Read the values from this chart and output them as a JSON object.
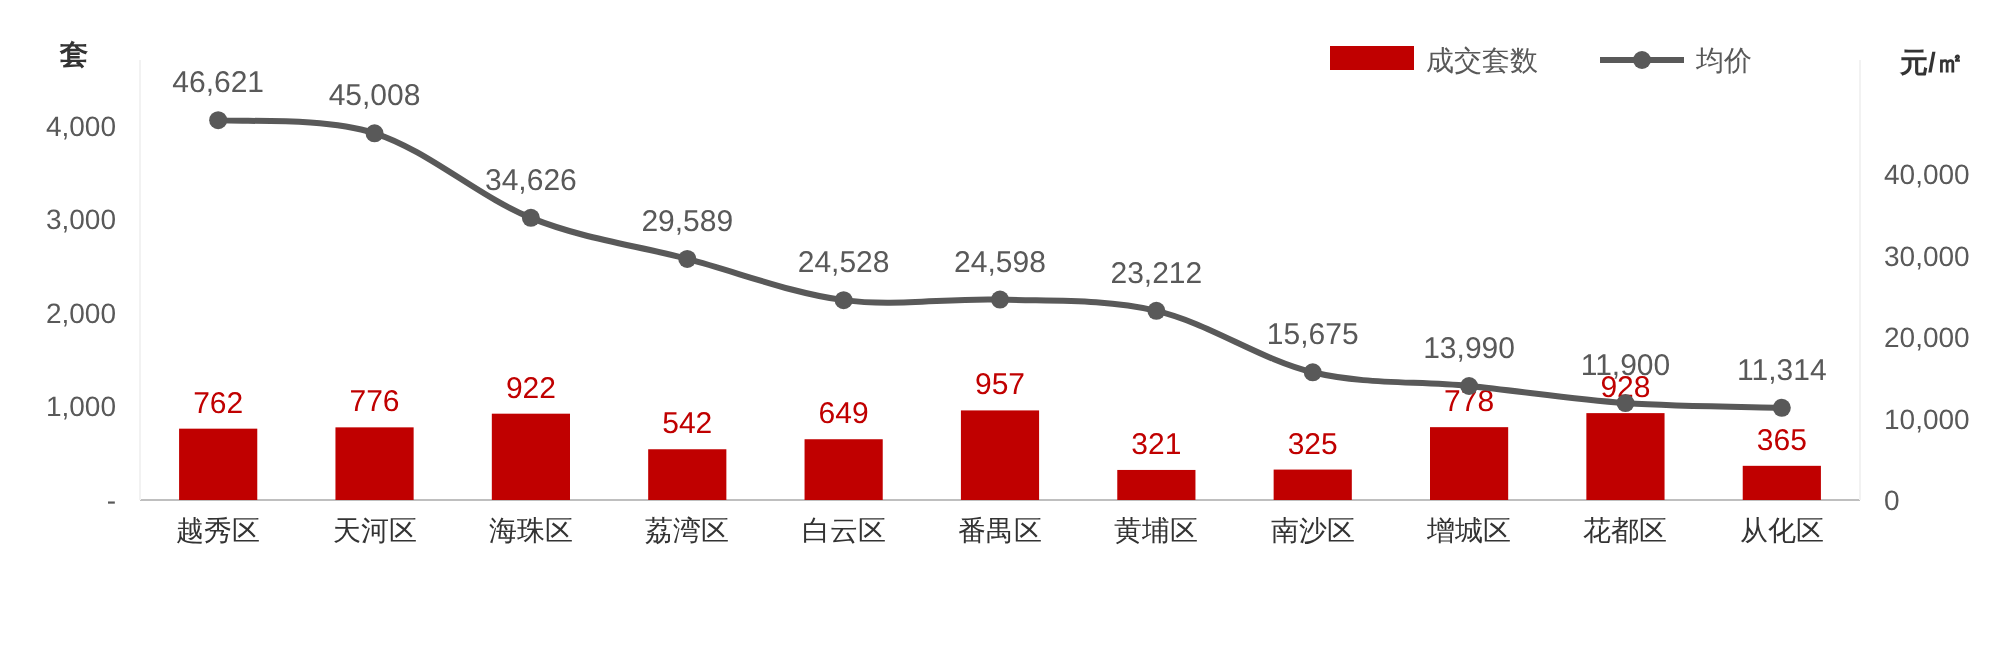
{
  "chart_data": {
    "type": "bar",
    "categories": [
      "越秀区",
      "天河区",
      "海珠区",
      "荔湾区",
      "白云区",
      "番禺区",
      "黄埔区",
      "南沙区",
      "增城区",
      "花都区",
      "从化区"
    ],
    "series": [
      {
        "name": "成交套数",
        "color": "#c00000",
        "values": [
          762,
          776,
          922,
          542,
          649,
          957,
          321,
          325,
          778,
          928,
          365
        ],
        "value_labels": [
          "762",
          "776",
          "922",
          "542",
          "649",
          "957",
          "321",
          "325",
          "778",
          "928",
          "365"
        ]
      },
      {
        "name": "均价",
        "type": "line",
        "axis": "y2",
        "color": "#595959",
        "marker": "circle",
        "values": [
          46621,
          45008,
          34626,
          29589,
          24528,
          24598,
          23212,
          15675,
          13990,
          11900,
          11314
        ],
        "value_labels": [
          "46,621",
          "45,008",
          "34,626",
          "29,589",
          "24,528",
          "24,598",
          "23,212",
          "15,675",
          "13,990",
          "11,900",
          "11,314"
        ]
      }
    ],
    "ylabel": "套",
    "y2label": "元/㎡",
    "ylim": [
      0,
      4700
    ],
    "yticks": [
      {
        "value": 0,
        "label": "-"
      },
      {
        "value": 1000,
        "label": "1,000"
      },
      {
        "value": 2000,
        "label": "2,000"
      },
      {
        "value": 3000,
        "label": "3,000"
      },
      {
        "value": 4000,
        "label": "4,000"
      }
    ],
    "y2lim": [
      0,
      54000
    ],
    "y2ticks": [
      0,
      {
        "value": 10000,
        "label": "10,000"
      },
      {
        "value": 20000,
        "label": "20,000"
      },
      {
        "value": 30000,
        "label": "30,000"
      },
      {
        "value": 40000,
        "label": "40,000"
      }
    ],
    "legend": "top right"
  }
}
